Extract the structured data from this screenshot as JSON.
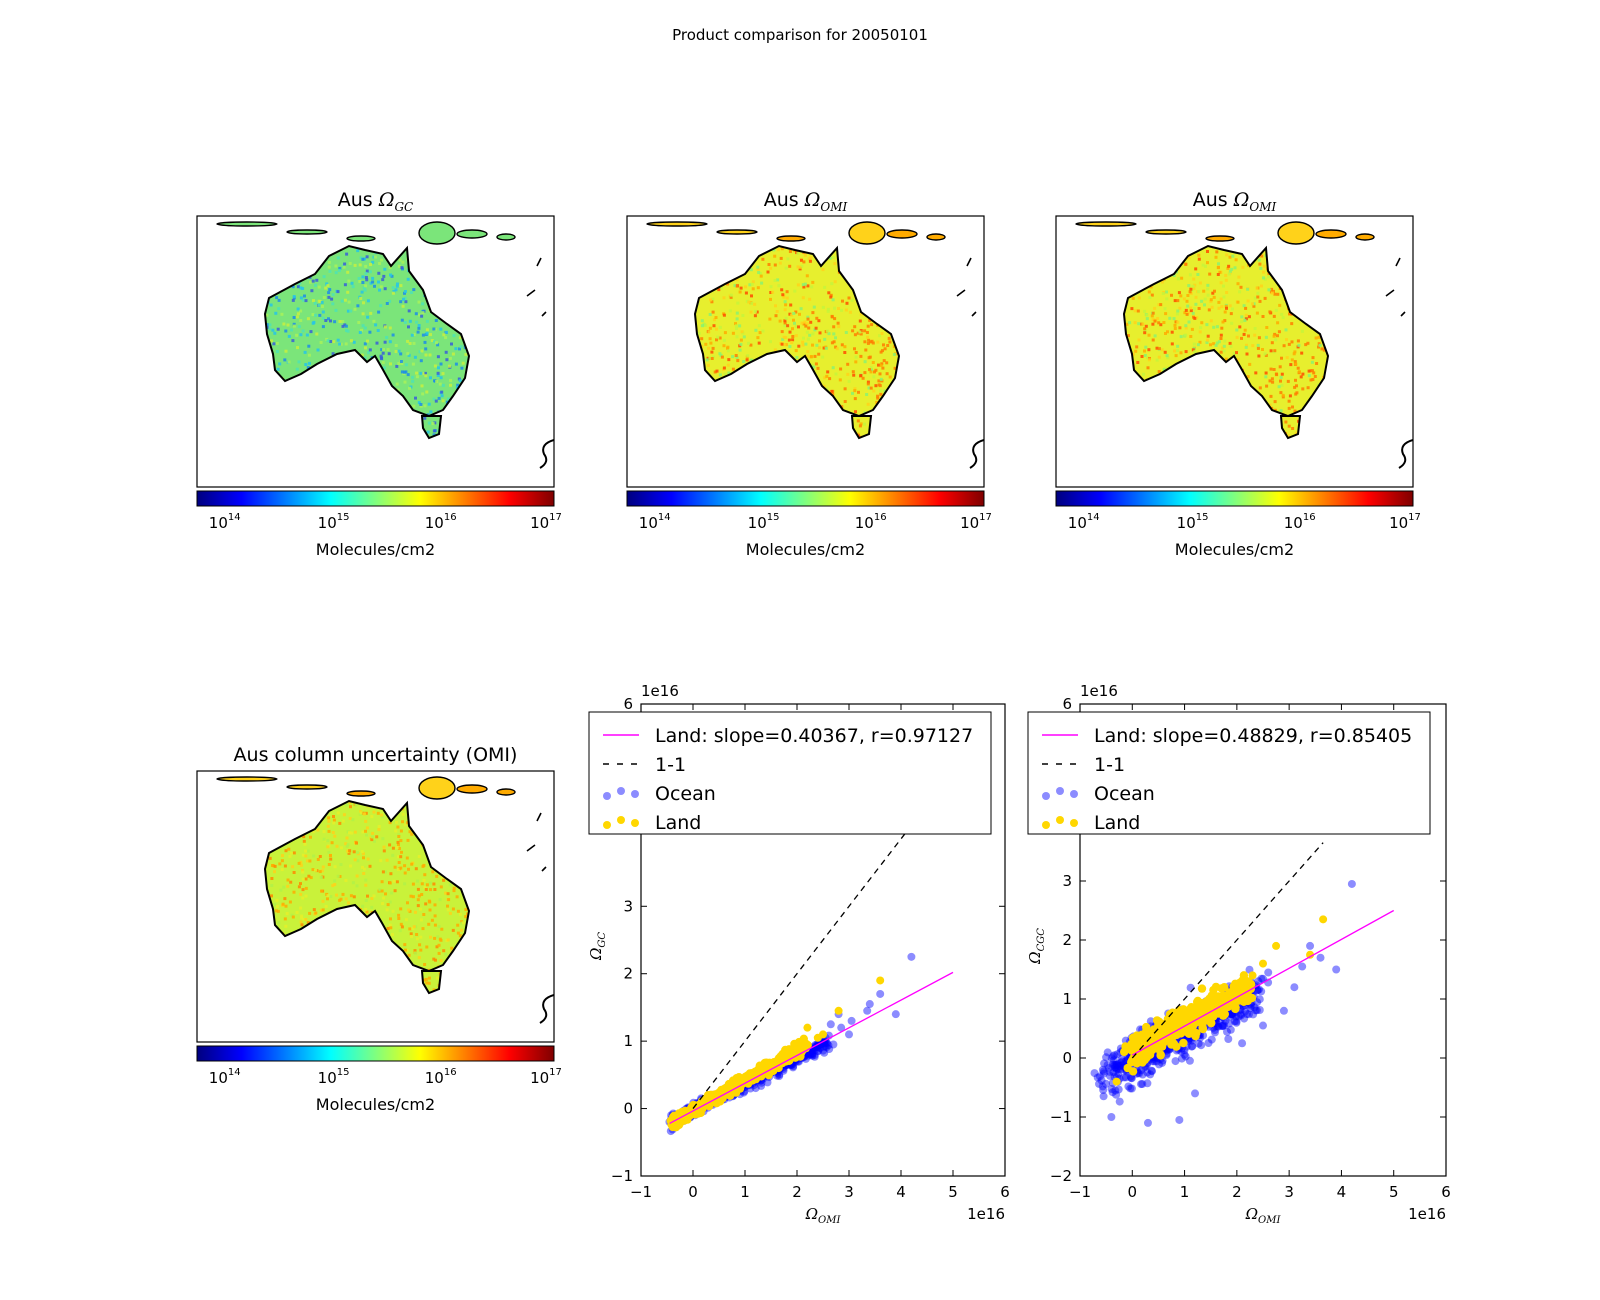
{
  "figure": {
    "suptitle": "Product comparison for 20050101"
  },
  "maps": [
    {
      "title": "Aus ΩGC",
      "title_text": "Aus",
      "title_symbol": "Ω",
      "title_subscript": "GC",
      "colorbar_label": "Molecules/cm2",
      "colorbar_ticks": [
        "14",
        "15",
        "16",
        "17"
      ],
      "colorbar_base": "10",
      "base_color": "#7be57a",
      "speckle_colors": [
        "#4fe3b4",
        "#26c6e8",
        "#a8f25a",
        "#c8f040",
        "#1d8de8",
        "#3a5fd8"
      ]
    },
    {
      "title": "Aus ΩOMI",
      "title_text": "Aus",
      "title_symbol": "Ω",
      "title_subscript": "OMI",
      "colorbar_label": "Molecules/cm2",
      "colorbar_ticks": [
        "14",
        "15",
        "16",
        "17"
      ],
      "colorbar_base": "10",
      "base_color": "#e7ef2e",
      "speckle_colors": [
        "#ffd21a",
        "#ffab00",
        "#ff7e00",
        "#c6f53a",
        "#8af270",
        "#ff4c00"
      ]
    },
    {
      "title": "Aus ΩOMI",
      "title_text": "Aus",
      "title_symbol": "Ω",
      "title_subscript": "OMI",
      "colorbar_label": "Molecules/cm2",
      "colorbar_ticks": [
        "14",
        "15",
        "16",
        "17"
      ],
      "colorbar_base": "10",
      "base_color": "#e7ef2e",
      "speckle_colors": [
        "#ffd21a",
        "#ffab00",
        "#ff7e00",
        "#c6f53a",
        "#8af270",
        "#ff4c00"
      ]
    },
    {
      "title": "Aus column uncertainty (OMI)",
      "title_text": "Aus column uncertainty (OMI)",
      "title_symbol": "",
      "title_subscript": "",
      "colorbar_label": "Molecules/cm2",
      "colorbar_ticks": [
        "14",
        "15",
        "16",
        "17"
      ],
      "colorbar_base": "10",
      "base_color": "#c9f23a",
      "speckle_colors": [
        "#e6f02a",
        "#ffd21a",
        "#ffab00",
        "#ff8a00",
        "#b2f248"
      ]
    }
  ],
  "colormap": {
    "stops": [
      "#00007f",
      "#0000ff",
      "#007fff",
      "#00ffff",
      "#7fff7f",
      "#ffff00",
      "#ff7f00",
      "#ff0000",
      "#7f0000"
    ]
  },
  "chart_data": [
    {
      "type": "scatter",
      "title": "",
      "xlabel": "ΩOMI",
      "xlabel_symbol": "Ω",
      "xlabel_subscript": "OMI",
      "ylabel": "ΩGC",
      "ylabel_symbol": "Ω",
      "ylabel_subscript": "GC",
      "xlim": [
        -1,
        6
      ],
      "ylim": [
        -1,
        6
      ],
      "xticks": [
        -1,
        0,
        1,
        2,
        3,
        4,
        5,
        6
      ],
      "yticks_visible": [
        -1,
        0,
        1,
        2,
        3
      ],
      "yticks_top": [
        6
      ],
      "x_offset_label": "1e16",
      "y_offset_label": "1e16",
      "legend": {
        "position": "top-left",
        "entries": [
          {
            "label": "Land: slope=0.40367, r=0.97127",
            "kind": "line",
            "color": "#ff00ff"
          },
          {
            "label": "1-1",
            "kind": "dashed",
            "color": "#000000"
          },
          {
            "label": "Ocean",
            "kind": "marker",
            "color": "#0000ff"
          },
          {
            "label": "Land",
            "kind": "marker",
            "color": "#ffd700"
          }
        ]
      },
      "series": [
        {
          "name": "Land: slope=0.40367, r=0.97127",
          "kind": "line",
          "color": "#ff00ff",
          "points": [
            [
              -0.45,
              -0.22
            ],
            [
              5.0,
              2.02
            ]
          ]
        },
        {
          "name": "1-1",
          "kind": "dashed",
          "color": "#000000",
          "points": [
            [
              0,
              0
            ],
            [
              4.1,
              4.1
            ]
          ]
        },
        {
          "name": "Ocean",
          "kind": "scatter",
          "color": "#0000ff",
          "cloud": {
            "x0": -0.45,
            "y0": -0.2,
            "x1": 2.6,
            "y1": 0.98,
            "spread": 0.1,
            "count": 420
          },
          "outliers": [
            [
              4.2,
              2.25
            ],
            [
              3.6,
              1.7
            ],
            [
              3.35,
              1.45
            ],
            [
              3.05,
              1.3
            ],
            [
              2.85,
              1.2
            ],
            [
              2.8,
              1.4
            ],
            [
              3.0,
              1.1
            ],
            [
              2.55,
              1.05
            ],
            [
              2.7,
              0.95
            ],
            [
              3.9,
              1.4
            ],
            [
              2.4,
              0.85
            ],
            [
              2.65,
              1.25
            ],
            [
              3.4,
              1.55
            ]
          ]
        },
        {
          "name": "Land",
          "kind": "scatter",
          "color": "#ffd700",
          "cloud": {
            "x0": -0.4,
            "y0": -0.2,
            "x1": 2.2,
            "y1": 0.95,
            "spread": 0.09,
            "count": 360
          },
          "outliers": [
            [
              3.6,
              1.9
            ],
            [
              2.8,
              1.45
            ],
            [
              2.5,
              1.1
            ],
            [
              2.2,
              1.2
            ],
            [
              2.4,
              1.05
            ]
          ]
        }
      ]
    },
    {
      "type": "scatter",
      "title": "",
      "xlabel": "ΩOMI",
      "xlabel_symbol": "Ω",
      "xlabel_subscript": "OMI",
      "ylabel": "ΩCGC",
      "ylabel_symbol": "Ω",
      "ylabel_subscript": "CGC",
      "xlim": [
        -1,
        6
      ],
      "ylim": [
        -2,
        6
      ],
      "xticks": [
        -1,
        0,
        1,
        2,
        3,
        4,
        5,
        6
      ],
      "yticks_visible": [
        -2,
        -1,
        0,
        1,
        2,
        3
      ],
      "yticks_top": [
        6
      ],
      "x_offset_label": "1e16",
      "y_offset_label": "1e16",
      "legend": {
        "position": "top-left",
        "entries": [
          {
            "label": "Land: slope=0.48829, r=0.85405",
            "kind": "line",
            "color": "#ff00ff"
          },
          {
            "label": "1-1",
            "kind": "dashed",
            "color": "#000000"
          },
          {
            "label": "Ocean",
            "kind": "marker",
            "color": "#0000ff"
          },
          {
            "label": "Land",
            "kind": "marker",
            "color": "#ffd700"
          }
        ]
      },
      "series": [
        {
          "name": "Land: slope=0.48829, r=0.85405",
          "kind": "line",
          "color": "#ff00ff",
          "points": [
            [
              0,
              0.05
            ],
            [
              5.0,
              2.5
            ]
          ]
        },
        {
          "name": "1-1",
          "kind": "dashed",
          "color": "#000000",
          "points": [
            [
              0,
              0
            ],
            [
              3.65,
              3.65
            ]
          ]
        },
        {
          "name": "Ocean",
          "kind": "scatter",
          "color": "#0000ff",
          "cloud": {
            "x0": -0.5,
            "y0": -0.3,
            "x1": 2.4,
            "y1": 1.1,
            "spread": 0.38,
            "count": 520
          },
          "outliers": [
            [
              4.2,
              2.95
            ],
            [
              3.9,
              1.5
            ],
            [
              3.6,
              1.7
            ],
            [
              3.4,
              1.9
            ],
            [
              3.1,
              1.2
            ],
            [
              2.9,
              0.8
            ],
            [
              2.6,
              1.45
            ],
            [
              3.25,
              1.55
            ],
            [
              -0.4,
              -1.0
            ],
            [
              0.3,
              -1.1
            ],
            [
              0.9,
              -1.05
            ],
            [
              1.2,
              -0.6
            ],
            [
              2.1,
              0.25
            ],
            [
              2.5,
              0.55
            ]
          ]
        },
        {
          "name": "Land",
          "kind": "scatter",
          "color": "#ffd700",
          "cloud": {
            "x0": 0.0,
            "y0": 0.1,
            "x1": 2.2,
            "y1": 1.2,
            "spread": 0.25,
            "count": 420
          },
          "outliers": [
            [
              3.65,
              2.35
            ],
            [
              2.75,
              1.9
            ],
            [
              2.5,
              1.6
            ],
            [
              3.4,
              1.75
            ],
            [
              2.3,
              1.4
            ],
            [
              -0.3,
              -0.4
            ]
          ]
        }
      ]
    }
  ]
}
